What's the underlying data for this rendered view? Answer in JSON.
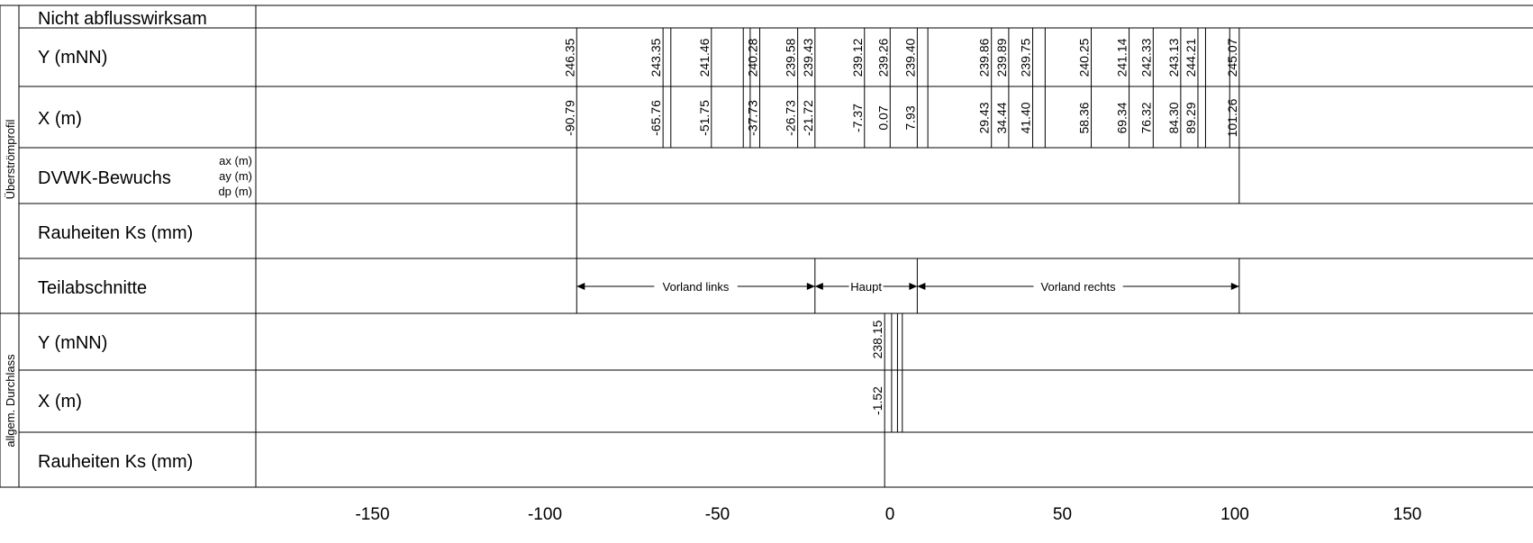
{
  "groups": {
    "ueberstroemprofil": "Überströmprofil",
    "durchlass": "allgem. Durchlass"
  },
  "rows": {
    "nicht_abfluss": "Nicht abflusswirksam",
    "y1": "Y (mNN)",
    "x1": "X (m)",
    "dvwk": "DVWK-Bewuchs",
    "dvwk_ax": "ax (m)",
    "dvwk_ay": "ay (m)",
    "dvwk_dp": "dp (m)",
    "rauheit1": "Rauheiten Ks (mm)",
    "teil": "Teilabschnitte",
    "y2": "Y (mNN)",
    "x2": "X (m)",
    "rauheit2": "Rauheiten Ks (mm)"
  },
  "sections": [
    "Vorland links",
    "Haupt",
    "Vorland rechts"
  ],
  "section_bounds": [
    -90.79,
    -21.72,
    7.93,
    101.26
  ],
  "profile_points": [
    {
      "x": -90.79,
      "y": 246.35,
      "x_label": "-90.79",
      "y_label": "246.35"
    },
    {
      "x": -65.76,
      "y": 243.35,
      "x_label": "-65.76",
      "y_label": "243.35"
    },
    {
      "x": -51.75,
      "y": 241.46,
      "x_label": "-51.75",
      "y_label": "241.46"
    },
    {
      "x": -37.73,
      "y": 240.28,
      "x_label": "-37.73",
      "y_label": "240.28"
    },
    {
      "x": -26.73,
      "y": 239.58,
      "x_label": "-26.73",
      "y_label": "239.58"
    },
    {
      "x": -21.72,
      "y": 239.43,
      "x_label": "-21.72",
      "y_label": "239.43"
    },
    {
      "x": -7.37,
      "y": 239.12,
      "x_label": "-7.37",
      "y_label": "239.12"
    },
    {
      "x": 0.07,
      "y": 239.26,
      "x_label": "0.07",
      "y_label": "239.26"
    },
    {
      "x": 7.93,
      "y": 239.4,
      "x_label": "7.93",
      "y_label": "239.40"
    },
    {
      "x": 29.43,
      "y": 239.86,
      "x_label": "29.43",
      "y_label": "239.86"
    },
    {
      "x": 34.44,
      "y": 239.89,
      "x_label": "34.44",
      "y_label": "239.89"
    },
    {
      "x": 41.4,
      "y": 239.75,
      "x_label": "41.40",
      "y_label": "239.75"
    },
    {
      "x": 58.36,
      "y": 240.25,
      "x_label": "58.36",
      "y_label": "240.25"
    },
    {
      "x": 69.34,
      "y": 241.14,
      "x_label": "69.34",
      "y_label": "241.14"
    },
    {
      "x": 76.32,
      "y": 242.33,
      "x_label": "76.32",
      "y_label": "242.33"
    },
    {
      "x": 84.3,
      "y": 243.13,
      "x_label": "84.30",
      "y_label": "243.13"
    },
    {
      "x": 89.29,
      "y": 244.21,
      "x_label": "89.29",
      "y_label": "244.21"
    },
    {
      "x": 101.26,
      "y": 245.07,
      "x_label": "101.26",
      "y_label": "245.07"
    }
  ],
  "extra_profile_lines_x": [
    -63.5,
    -42.5,
    -40.5,
    11.0,
    45.0,
    91.5,
    98.5
  ],
  "culvert": {
    "x": -1.52,
    "y": 238.15,
    "x_label": "-1.52",
    "y_label": "238.15",
    "extra_lines_x": [
      0.5,
      2.2,
      3.6
    ]
  },
  "x_axis": {
    "ticks": [
      -150,
      -100,
      -50,
      0,
      50,
      100,
      150
    ],
    "tick_labels": [
      "-150",
      "-100",
      "-50",
      "0",
      "50",
      "100",
      "150"
    ]
  }
}
